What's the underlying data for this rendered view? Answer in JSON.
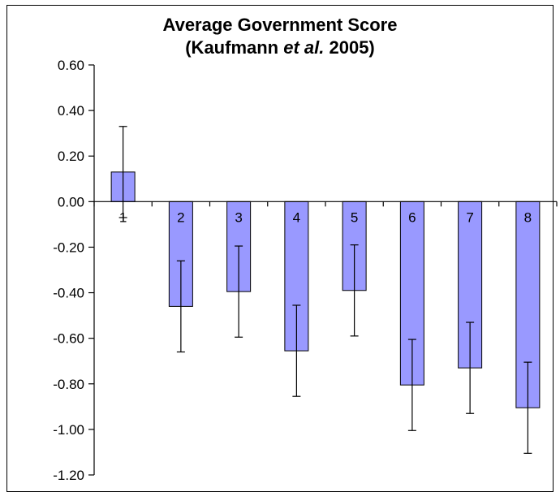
{
  "chart_data": {
    "type": "bar",
    "title_parts": [
      {
        "text": "Average Government Score",
        "italic": false,
        "line": 1
      },
      {
        "text": "(Kaufmann ",
        "italic": false,
        "line": 2
      },
      {
        "text": "et al.",
        "italic": true,
        "line": 2
      },
      {
        "text": " 2005)",
        "italic": false,
        "line": 2
      }
    ],
    "categories": [
      "1",
      "2",
      "3",
      "4",
      "5",
      "6",
      "7",
      "8"
    ],
    "values": [
      0.13,
      -0.46,
      -0.395,
      -0.655,
      -0.39,
      -0.805,
      -0.73,
      -0.905
    ],
    "error": [
      0.2,
      0.2,
      0.2,
      0.2,
      0.2,
      0.2,
      0.2,
      0.2
    ],
    "ylim": [
      -1.2,
      0.6
    ],
    "yticks": [
      0.6,
      0.4,
      0.2,
      0.0,
      -0.2,
      -0.4,
      -0.6,
      -0.8,
      -1.0,
      -1.2
    ],
    "ytick_labels": [
      "0.60",
      "0.40",
      "0.20",
      "0.00",
      "-0.20",
      "-0.40",
      "-0.60",
      "-0.80",
      "-1.00",
      "-1.20"
    ],
    "grid": false,
    "legend": "none",
    "bar_color": "#9999ff",
    "bar_edge_color": "#000000",
    "xlabel": "",
    "ylabel": ""
  }
}
